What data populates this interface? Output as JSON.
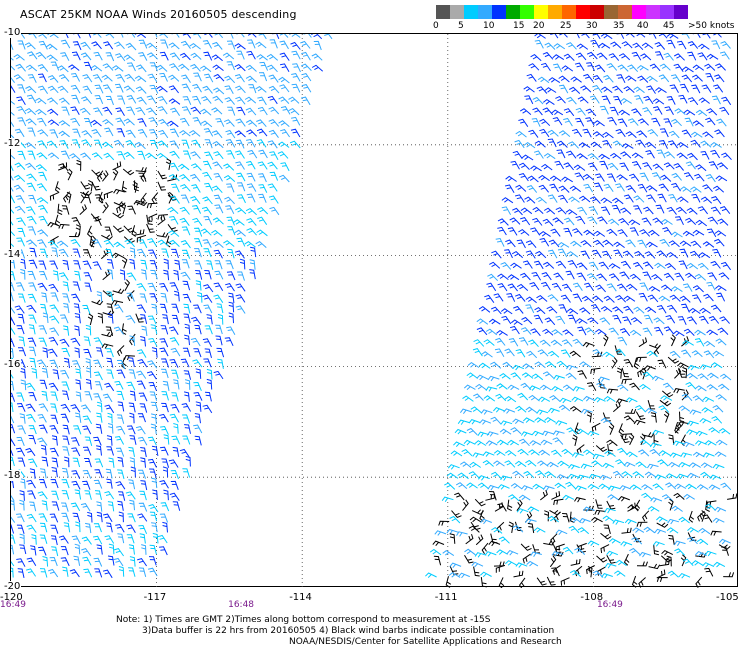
{
  "title": "ASCAT 25KM NOAA Winds 20160505 descending",
  "colorbar": {
    "colors": [
      "#555555",
      "#aaaaaa",
      "#00ccff",
      "#33aaff",
      "#0033ff",
      "#00aa00",
      "#33ff00",
      "#ffff00",
      "#ffaa00",
      "#ff6600",
      "#ff0000",
      "#cc0000",
      "#996633",
      "#cc6633",
      "#ff00ff",
      "#cc33ff",
      "#9933ff",
      "#6600cc"
    ],
    "labels": [
      "0",
      "5",
      "10",
      "15",
      "20",
      "25",
      "30",
      "35",
      "40",
      "45",
      ">50 knots"
    ]
  },
  "map": {
    "lon_range": [
      -120,
      -105
    ],
    "lat_range": [
      -20,
      -10
    ],
    "lon_ticks": [
      "-120",
      "-117",
      "-114",
      "-111",
      "-108",
      "-105"
    ],
    "lat_ticks": [
      "-10",
      "-12",
      "-14",
      "-16",
      "-18",
      "-20"
    ],
    "grid": "dotted",
    "swaths": [
      {
        "name": "west",
        "time": "16:49",
        "lon_west_top": -120,
        "lon_east_top": -113.2,
        "lon_west_bottom": -120,
        "lon_east_bottom": -116.9
      },
      {
        "name": "east",
        "time": "16:49",
        "lon_west_top": -109.0,
        "lon_east_top": -105,
        "lon_west_bottom": -111.3,
        "lon_east_bottom": -105
      }
    ],
    "times": [
      {
        "label": "16:49",
        "lon": -120
      },
      {
        "label": "16:48",
        "lon": -115.3
      },
      {
        "label": "16:49",
        "lon": -107.7
      }
    ],
    "wind_colors": {
      "contaminated": "#000000",
      "cyan": "#00ccff",
      "light_blue": "#33aaff",
      "blue": "#0033ff"
    }
  },
  "notes": [
    "Note: 1) Times are GMT 2)Times along bottom correspond to measurement at -15S",
    "3)Data buffer is 22 hrs from 20160505 4) Black wind barbs indicate possible contamination",
    "NOAA/NESDIS/Center for Satellite Applications and Research"
  ]
}
